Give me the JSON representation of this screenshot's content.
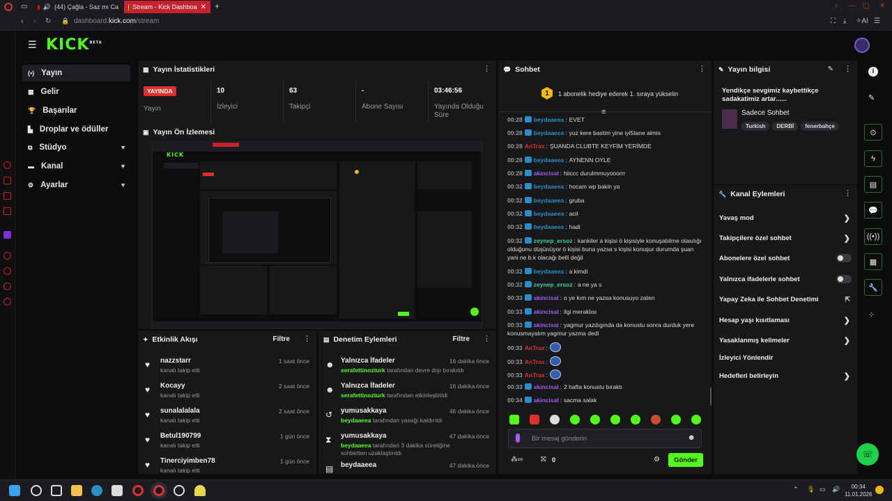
{
  "browser": {
    "tabs": [
      {
        "label": "(44) Çağla - Saz mı Ca"
      },
      {
        "label": "Stream - Kick Dashboa"
      }
    ],
    "url_prefix": "dashboard.",
    "url_domain": "kick.com",
    "url_path": "/stream",
    "ai_label": "AI"
  },
  "app": {
    "logo": "KICK",
    "beta": "BETA"
  },
  "sidebar": {
    "items": [
      {
        "label": "Yayın"
      },
      {
        "label": "Gelir"
      },
      {
        "label": "Başarılar"
      },
      {
        "label": "Droplar ve ödüller"
      },
      {
        "label": "Stüdyo"
      },
      {
        "label": "Kanal"
      },
      {
        "label": "Ayarlar"
      }
    ]
  },
  "stats": {
    "title": "Yayın İstatistikleri",
    "live_badge": "YAYINDA",
    "live_label": "Yayın",
    "items": [
      {
        "value": "10",
        "label": "İzleyici"
      },
      {
        "value": "63",
        "label": "Takipçi"
      },
      {
        "value": "-",
        "label": "Abone Sayısı"
      },
      {
        "value": "03:46:56",
        "label": "Yayında Olduğu Süre"
      }
    ]
  },
  "preview": {
    "title": "Yayın Ön İzlemesi"
  },
  "activity": {
    "title": "Etkinlik Akışı",
    "filter": "Filtre",
    "rows": [
      {
        "name": "nazzstarr",
        "sub": "kanalı takip etti",
        "time": "1 saat önce"
      },
      {
        "name": "Kocayy",
        "sub": "kanalı takip etti",
        "time": "2 saat önce"
      },
      {
        "name": "sunalalalala",
        "sub": "kanalı takip etti",
        "time": "2 saat önce"
      },
      {
        "name": "Betul190799",
        "sub": "kanalı takip etti",
        "time": "1 gün önce"
      },
      {
        "name": "Tinerciyimben78",
        "sub": "kanalı takip etti",
        "time": "1 gün önce"
      }
    ]
  },
  "moderation": {
    "title": "Denetim Eylemleri",
    "filter": "Filtre",
    "rows": [
      {
        "name": "Yalnızca İfadeler",
        "actor": "serafettinozturk",
        "sub": "tarafından devre dışı bırakıldı",
        "time": "16 dakika önce"
      },
      {
        "name": "Yalnızca İfadeler",
        "actor": "serafettinozturk",
        "sub": "tarafından etkinleştirildi",
        "time": "16 dakika önce"
      },
      {
        "name": "yumusakkaya",
        "actor": "beydaaeea",
        "sub": "tarafından yasağı kaldırıldı",
        "time": "46 dakika önce"
      },
      {
        "name": "yumusakkaya",
        "actor": "beydaaeea",
        "sub": "tarafından 3 dakika süreliğine sohbetten uzaklaştırıldı",
        "time": "47 dakika önce"
      },
      {
        "name": "beydaaeea",
        "actor": "",
        "sub": "",
        "time": "47 dakika önce"
      }
    ]
  },
  "chat": {
    "title": "Sohbet",
    "gift_text": "1 abonelik hediye ederek 1. sıraya yükselin",
    "gift_badge": "1",
    "messages": [
      {
        "time": "00:28",
        "user": "beydaaeea",
        "color": "#2a8fc9",
        "text": "EVET"
      },
      {
        "time": "00:28",
        "user": "beydaaeea",
        "color": "#2a8fc9",
        "text": "yuz kere bastim yine iyi5tane almis"
      },
      {
        "time": "00:28",
        "user": "AnTrax",
        "color": "#e0312d",
        "text": "ŞUANDA CLUBTE KEYFİM YERİMDE"
      },
      {
        "time": "00:28",
        "user": "beydaaeea",
        "color": "#2a8fc9",
        "text": "AYNENN OYLE"
      },
      {
        "time": "00:28",
        "user": "akincisal",
        "color": "#a25cf0",
        "text": "hiiccc durulmmuyooorrr"
      },
      {
        "time": "00:32",
        "user": "beydaaeea",
        "color": "#2a8fc9",
        "text": "hocam wp bakin ya"
      },
      {
        "time": "00:32",
        "user": "beydaaeea",
        "color": "#2a8fc9",
        "text": "gruba"
      },
      {
        "time": "00:32",
        "user": "beydaaeea",
        "color": "#2a8fc9",
        "text": "acil"
      },
      {
        "time": "00:32",
        "user": "beydaaeea",
        "color": "#2a8fc9",
        "text": "hadi"
      },
      {
        "time": "00:32",
        "user": "zeynep_ersoz",
        "color": "#3fcf9a",
        "text": "kankiler a kişisi ö kişisiyle konuşabilme olasılığı olduğunu düşünüyor ö kişisi buna yazsa s kişisi konuşur durumda şuan yani ne b.k olacağı belli değil"
      },
      {
        "time": "00:32",
        "user": "beydaaeea",
        "color": "#2a8fc9",
        "text": "a kimdi"
      },
      {
        "time": "00:32",
        "user": "zeynep_ersoz",
        "color": "#3fcf9a",
        "text": "a ne ya s"
      },
      {
        "time": "00:33",
        "user": "akincisal",
        "color": "#a25cf0",
        "text": "o ye kım ne yazsa konusuyo zaten"
      },
      {
        "time": "00:33",
        "user": "akincisal",
        "color": "#a25cf0",
        "text": "ilgi meraklısı"
      },
      {
        "time": "00:33",
        "user": "akincisal",
        "color": "#a25cf0",
        "text": "yagmur yazdıgında da konustu sonra durduk yere konusmayalım yagmur yazma dedi"
      },
      {
        "time": "00:33",
        "user": "AnTrax",
        "color": "#e0312d",
        "text": ""
      },
      {
        "time": "00:33",
        "user": "AnTrax",
        "color": "#e0312d",
        "text": ""
      },
      {
        "time": "00:33",
        "user": "AnTrax",
        "color": "#e0312d",
        "text": ""
      },
      {
        "time": "00:33",
        "user": "akincisal",
        "color": "#a25cf0",
        "text": "2 hafta konustu bıraktı"
      },
      {
        "time": "00:34",
        "user": "akincisal",
        "color": "#a25cf0",
        "text": "sacma salak"
      }
    ],
    "input_placeholder": "Bir mesaj gönderin",
    "points": "0",
    "send_label": "Gönder"
  },
  "stream_info": {
    "title": "Yayın bilgisi",
    "stream_title": "Yendikçe sevgimiz kaybettikçe sadakatimiz artar......",
    "category": "Sadece Sohbet",
    "tags": [
      "Turkish",
      "DERBİ",
      "fenerbahçe"
    ]
  },
  "channel_actions": {
    "title": "Kanal Eylemleri",
    "items": [
      {
        "label": "Yavaş mod",
        "control": "arrow"
      },
      {
        "label": "Takipçilere özel sohbet",
        "control": "arrow"
      },
      {
        "label": "Abonelere özel sohbet",
        "control": "toggle"
      },
      {
        "label": "Yalnızca ifadelerle sohbet",
        "control": "toggle"
      },
      {
        "label": "Yapay Zeka ile Sohbet Denetimi",
        "control": "external"
      },
      {
        "label": "Hesap yaşı kısıtlaması",
        "control": "arrow"
      },
      {
        "label": "Yasaklanmış kelimeler",
        "control": "arrow"
      },
      {
        "label": "İzleyici Yönlendir",
        "control": "none"
      },
      {
        "label": "Hedefleri belirleyin",
        "control": "arrow"
      }
    ]
  },
  "taskbar": {
    "time": "00:34",
    "date": "11.01.2026"
  },
  "colors": {
    "kick_green": "#53fc18",
    "live_red": "#e0312d",
    "panel_bg": "#17181a"
  }
}
